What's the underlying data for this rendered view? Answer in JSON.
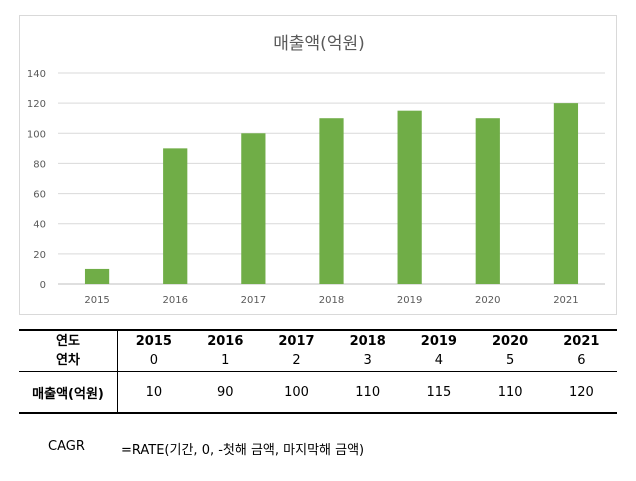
{
  "chart_data": {
    "type": "bar",
    "title": "매출액(억원)",
    "categories": [
      "2015",
      "2016",
      "2017",
      "2018",
      "2019",
      "2020",
      "2021"
    ],
    "values": [
      10,
      90,
      100,
      110,
      115,
      110,
      120
    ],
    "ylim": [
      0,
      140
    ],
    "yticks": [
      0,
      20,
      40,
      60,
      80,
      100,
      120,
      140
    ],
    "grid": true,
    "bar_color": "#70ad47"
  },
  "table": {
    "year_label": "연도",
    "offset_label": "연차",
    "revenue_label": "매출액(억원)",
    "years": [
      "2015",
      "2016",
      "2017",
      "2018",
      "2019",
      "2020",
      "2021"
    ],
    "offsets": [
      "0",
      "1",
      "2",
      "3",
      "4",
      "5",
      "6"
    ],
    "revenues": [
      "10",
      "90",
      "100",
      "110",
      "115",
      "110",
      "120"
    ]
  },
  "cagr": {
    "label": "CAGR",
    "formula": "=RATE(기간, 0, -첫해 금액, 마지막해 금액)"
  }
}
